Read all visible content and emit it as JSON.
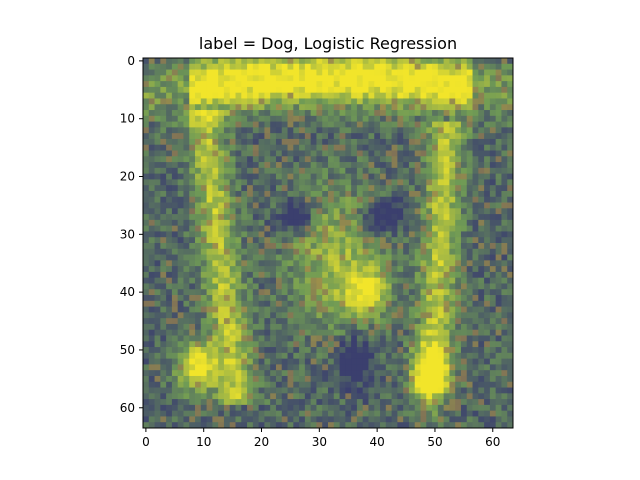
{
  "chart_data": {
    "type": "heatmap",
    "title": "label = Dog, Logistic Regression",
    "xlabel": "",
    "ylabel": "",
    "xlim": [
      -0.5,
      63.5
    ],
    "ylim": [
      63.5,
      -0.5
    ],
    "y_inverted": true,
    "grid": false,
    "x_ticks": [
      0,
      10,
      20,
      30,
      40,
      50,
      60
    ],
    "y_ticks": [
      0,
      10,
      20,
      30,
      40,
      50,
      60
    ],
    "x_tick_labels": [
      "0",
      "10",
      "20",
      "30",
      "40",
      "50",
      "60"
    ],
    "y_tick_labels": [
      "0",
      "10",
      "20",
      "30",
      "40",
      "50",
      "60"
    ],
    "image_size": [
      64,
      64
    ],
    "colormap": "viridis-like overlay on photo",
    "colors": {
      "low": "#3b3f6e",
      "mid": "#6f9a55",
      "high": "#f2e52a",
      "brown": "#9b7a4e"
    }
  }
}
